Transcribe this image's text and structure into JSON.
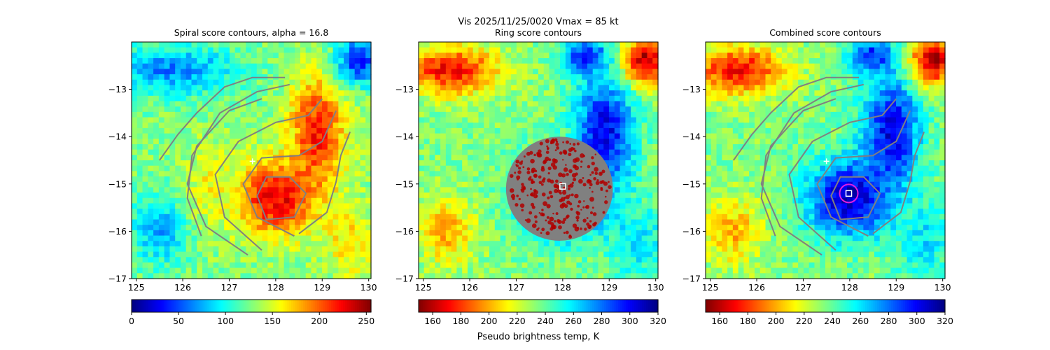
{
  "suptitle": "Vis  2025/11/25/0020    Vmax = 85 kt",
  "colorbar_label": "Pseudo brightness temp, K",
  "colors": {
    "contour": "#808080",
    "ring_mask": "#808080",
    "marker": "#ffffff",
    "center_circle": "#e01ee0"
  },
  "chart_data": [
    {
      "type": "heatmap",
      "title": "Spiral score contours, alpha = 16.8",
      "colormap": "jet",
      "colormap_reversed": false,
      "xlim": [
        124.9,
        130.05
      ],
      "ylim": [
        -17.0,
        -12.0
      ],
      "xticks": [
        "125",
        "126",
        "127",
        "128",
        "129",
        "130"
      ],
      "yticks": [
        "−13",
        "−14",
        "−15",
        "−16",
        "−17"
      ],
      "colorbar": {
        "range": [
          0,
          255
        ],
        "ticks": [
          "0",
          "50",
          "100",
          "150",
          "200",
          "250"
        ]
      },
      "field": {
        "background": 0.5,
        "blobs": [
          {
            "x": 128.0,
            "y": -15.3,
            "sx": 0.9,
            "sy": 0.8,
            "v": 0.9
          },
          {
            "x": 128.9,
            "y": -13.9,
            "sx": 0.6,
            "sy": 1.2,
            "v": 0.85
          },
          {
            "x": 129.6,
            "y": -16.2,
            "sx": 0.6,
            "sy": 0.8,
            "v": 0.65
          },
          {
            "x": 125.8,
            "y": -12.6,
            "sx": 1.3,
            "sy": 0.5,
            "v": 0.25
          },
          {
            "x": 129.8,
            "y": -12.4,
            "sx": 0.5,
            "sy": 0.5,
            "v": 0.15
          },
          {
            "x": 125.5,
            "y": -16.0,
            "sx": 0.6,
            "sy": 0.7,
            "v": 0.3
          },
          {
            "x": 126.6,
            "y": -15.0,
            "sx": 0.5,
            "sy": 0.9,
            "v": 0.62
          }
        ]
      },
      "markers": [
        {
          "kind": "plus",
          "x": 127.5,
          "y": -14.52
        }
      ],
      "spiral_contours": true
    },
    {
      "type": "heatmap",
      "title": "Ring score contours",
      "colormap": "jet",
      "colormap_reversed": true,
      "xlim": [
        124.9,
        130.05
      ],
      "ylim": [
        -17.0,
        -12.0
      ],
      "xticks": [
        "125",
        "126",
        "127",
        "128",
        "129",
        "130"
      ],
      "yticks": [
        "−13",
        "−14",
        "−15",
        "−16",
        "−17"
      ],
      "colorbar": {
        "range": [
          150,
          320
        ],
        "ticks": [
          "160",
          "180",
          "200",
          "220",
          "240",
          "260",
          "280",
          "300",
          "320"
        ]
      },
      "field": {
        "background": 0.5,
        "blobs": [
          {
            "x": 128.0,
            "y": -15.3,
            "sx": 0.9,
            "sy": 0.8,
            "v": 0.92
          },
          {
            "x": 128.9,
            "y": -13.9,
            "sx": 0.6,
            "sy": 1.2,
            "v": 0.9
          },
          {
            "x": 129.6,
            "y": -16.2,
            "sx": 0.6,
            "sy": 0.8,
            "v": 0.65
          },
          {
            "x": 128.5,
            "y": -12.3,
            "sx": 0.5,
            "sy": 0.4,
            "v": 0.85
          },
          {
            "x": 125.6,
            "y": -12.6,
            "sx": 1.0,
            "sy": 0.5,
            "v": 0.12
          },
          {
            "x": 129.8,
            "y": -12.4,
            "sx": 0.5,
            "sy": 0.5,
            "v": 0.05
          },
          {
            "x": 125.5,
            "y": -16.0,
            "sx": 0.6,
            "sy": 0.7,
            "v": 0.3
          }
        ]
      },
      "ring_mask": {
        "x": 127.93,
        "y": -15.1,
        "rx": 1.15,
        "ry": 1.1
      },
      "markers": [
        {
          "kind": "square",
          "x": 128.0,
          "y": -15.05
        }
      ],
      "spiral_contours": false
    },
    {
      "type": "heatmap",
      "title": "Combined score contours",
      "colormap": "jet",
      "colormap_reversed": true,
      "xlim": [
        124.9,
        130.05
      ],
      "ylim": [
        -17.0,
        -12.0
      ],
      "xticks": [
        "125",
        "126",
        "127",
        "128",
        "129",
        "130"
      ],
      "yticks": [
        "−13",
        "−14",
        "−15",
        "−16",
        "−17"
      ],
      "colorbar": {
        "range": [
          150,
          320
        ],
        "ticks": [
          "160",
          "180",
          "200",
          "220",
          "240",
          "260",
          "280",
          "300",
          "320"
        ]
      },
      "field": {
        "background": 0.5,
        "blobs": [
          {
            "x": 128.0,
            "y": -15.3,
            "sx": 0.9,
            "sy": 0.8,
            "v": 0.95
          },
          {
            "x": 128.9,
            "y": -13.9,
            "sx": 0.6,
            "sy": 1.2,
            "v": 0.9
          },
          {
            "x": 129.6,
            "y": -16.2,
            "sx": 0.6,
            "sy": 0.8,
            "v": 0.65
          },
          {
            "x": 128.5,
            "y": -12.3,
            "sx": 0.5,
            "sy": 0.4,
            "v": 0.85
          },
          {
            "x": 125.6,
            "y": -12.6,
            "sx": 1.0,
            "sy": 0.5,
            "v": 0.12
          },
          {
            "x": 129.8,
            "y": -12.4,
            "sx": 0.5,
            "sy": 0.5,
            "v": 0.05
          },
          {
            "x": 125.5,
            "y": -16.0,
            "sx": 0.6,
            "sy": 0.7,
            "v": 0.3
          }
        ]
      },
      "markers": [
        {
          "kind": "plus",
          "x": 127.5,
          "y": -14.52
        },
        {
          "kind": "circle",
          "x": 127.98,
          "y": -15.2
        },
        {
          "kind": "square",
          "x": 127.98,
          "y": -15.2
        }
      ],
      "spiral_contours": true
    }
  ],
  "spiral_contour_paths": [
    [
      [
        127.4,
        -16.5
      ],
      [
        126.5,
        -15.9
      ],
      [
        126.1,
        -15.0
      ],
      [
        126.3,
        -14.2
      ],
      [
        127.0,
        -13.45
      ],
      [
        127.7,
        -13.2
      ]
    ],
    [
      [
        126.4,
        -16.1
      ],
      [
        126.1,
        -15.3
      ],
      [
        126.2,
        -14.4
      ],
      [
        126.8,
        -13.5
      ],
      [
        127.6,
        -13.05
      ],
      [
        128.3,
        -12.9
      ]
    ],
    [
      [
        125.5,
        -14.5
      ],
      [
        125.9,
        -13.95
      ],
      [
        126.3,
        -13.5
      ],
      [
        126.9,
        -12.95
      ],
      [
        127.5,
        -12.75
      ],
      [
        128.2,
        -12.75
      ]
    ],
    [
      [
        127.7,
        -16.4
      ],
      [
        126.9,
        -15.7
      ],
      [
        126.7,
        -14.8
      ],
      [
        127.2,
        -14.1
      ],
      [
        128.0,
        -13.7
      ],
      [
        128.7,
        -13.55
      ],
      [
        129.0,
        -13.2
      ]
    ],
    [
      [
        128.4,
        -16.1
      ],
      [
        127.6,
        -15.7
      ],
      [
        127.3,
        -15.0
      ],
      [
        127.7,
        -14.45
      ],
      [
        128.5,
        -14.4
      ],
      [
        129.0,
        -14.1
      ],
      [
        129.3,
        -13.45
      ]
    ],
    [
      [
        128.5,
        -16.05
      ],
      [
        129.1,
        -15.6
      ],
      [
        129.3,
        -14.95
      ],
      [
        129.4,
        -14.4
      ],
      [
        129.6,
        -13.9
      ]
    ],
    [
      [
        127.8,
        -15.75
      ],
      [
        128.4,
        -15.7
      ],
      [
        128.65,
        -15.2
      ],
      [
        128.3,
        -14.85
      ],
      [
        127.8,
        -14.85
      ],
      [
        127.6,
        -15.25
      ],
      [
        127.8,
        -15.75
      ]
    ]
  ]
}
